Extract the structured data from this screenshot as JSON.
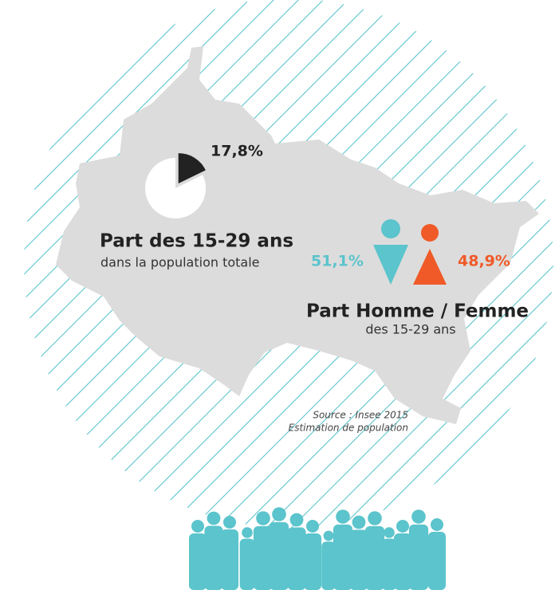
{
  "pie": {
    "value": 17.8,
    "label": "17,8%"
  },
  "part_title": "Part des 15-29 ans",
  "part_subtitle": "dans la population totale",
  "homme": "51,1%",
  "femme": "48,9%",
  "gender_title": "Part Homme / Femme",
  "gender_subtitle": "des 15-29 ans",
  "source": [
    "Source : Insee 2015",
    "Estimation de population"
  ]
}
